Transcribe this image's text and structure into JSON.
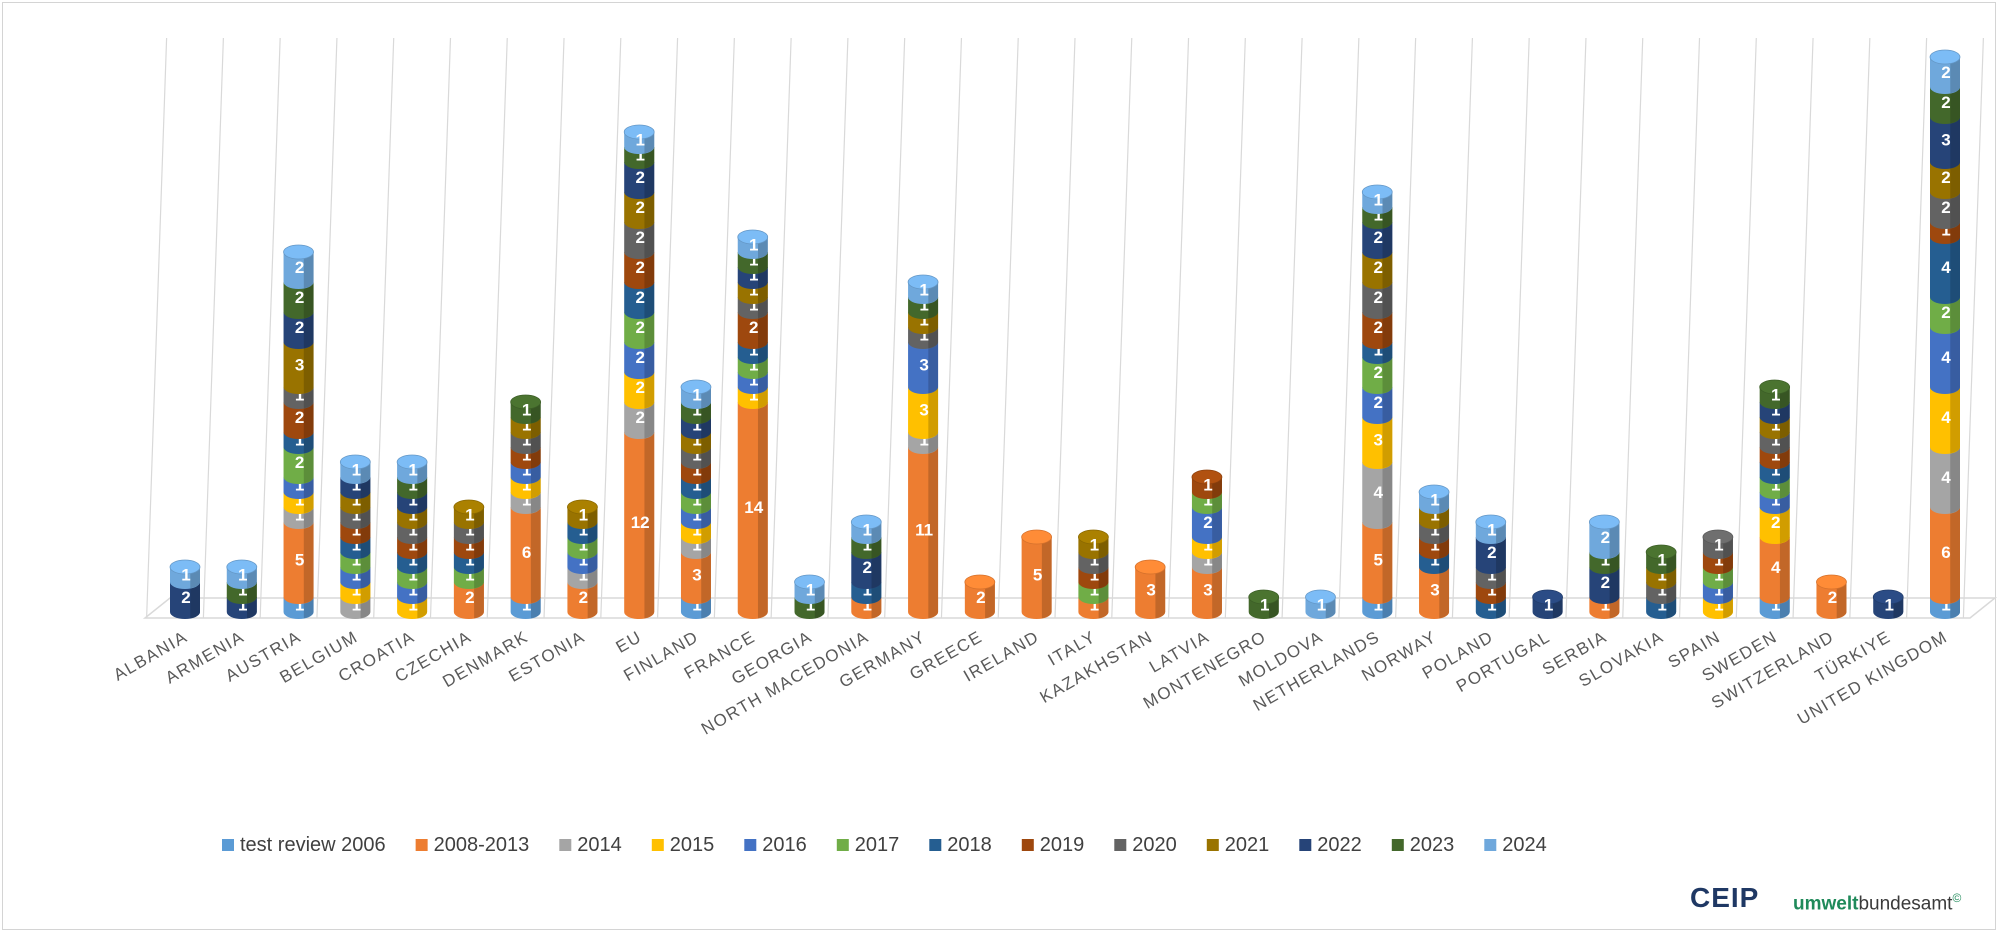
{
  "chart_data": {
    "type": "bar",
    "stacked": true,
    "style": "3d-cylinder",
    "title": "",
    "xlabel": "",
    "ylabel": "",
    "grid": true,
    "legend_position": "bottom",
    "categories": [
      "ALBANIA",
      "ARMENIA",
      "AUSTRIA",
      "BELGIUM",
      "CROATIA",
      "CZECHIA",
      "DENMARK",
      "ESTONIA",
      "EU",
      "FINLAND",
      "FRANCE",
      "GEORGIA",
      "NORTH MACEDONIA",
      "GERMANY",
      "GREECE",
      "IRELAND",
      "ITALY",
      "KAZAKHSTAN",
      "LATVIA",
      "MONTENEGRO",
      "MOLDOVA",
      "NETHERLANDS",
      "NORWAY",
      "POLAND",
      "PORTUGAL",
      "SERBIA",
      "SLOVAKIA",
      "SPAIN",
      "SWEDEN",
      "SWITZERLAND",
      "TÜRKIYE",
      "UNITED KINGDOM"
    ],
    "series": [
      {
        "name": "test review 2006",
        "color": "#5b9bd5",
        "values": [
          0,
          0,
          1,
          0,
          0,
          0,
          1,
          0,
          0,
          1,
          0,
          0,
          0,
          0,
          0,
          0,
          0,
          0,
          0,
          0,
          0,
          1,
          0,
          0,
          0,
          0,
          0,
          0,
          1,
          0,
          0,
          1
        ]
      },
      {
        "name": "2008-2013",
        "color": "#ed7d31",
        "values": [
          0,
          0,
          5,
          0,
          0,
          2,
          6,
          2,
          12,
          3,
          14,
          0,
          1,
          11,
          2,
          5,
          1,
          3,
          3,
          0,
          0,
          5,
          3,
          0,
          0,
          1,
          0,
          0,
          4,
          2,
          0,
          6
        ]
      },
      {
        "name": "2014",
        "color": "#a5a5a5",
        "values": [
          0,
          0,
          1,
          1,
          0,
          0,
          1,
          1,
          2,
          1,
          0,
          0,
          0,
          1,
          0,
          0,
          0,
          0,
          1,
          0,
          0,
          4,
          0,
          0,
          0,
          0,
          0,
          0,
          0,
          0,
          0,
          4
        ]
      },
      {
        "name": "2015",
        "color": "#ffc000",
        "values": [
          0,
          0,
          1,
          1,
          1,
          0,
          1,
          0,
          2,
          1,
          1,
          0,
          0,
          3,
          0,
          0,
          0,
          0,
          1,
          0,
          0,
          3,
          0,
          0,
          0,
          0,
          0,
          1,
          2,
          0,
          0,
          4
        ]
      },
      {
        "name": "2016",
        "color": "#4472c4",
        "values": [
          0,
          0,
          1,
          1,
          1,
          0,
          1,
          1,
          2,
          1,
          1,
          0,
          0,
          3,
          0,
          0,
          0,
          0,
          2,
          0,
          0,
          2,
          0,
          0,
          0,
          0,
          0,
          1,
          1,
          0,
          0,
          4
        ]
      },
      {
        "name": "2017",
        "color": "#70ad47",
        "values": [
          0,
          0,
          2,
          1,
          1,
          1,
          0,
          1,
          2,
          1,
          1,
          0,
          0,
          0,
          0,
          0,
          1,
          0,
          1,
          0,
          0,
          2,
          0,
          0,
          0,
          0,
          0,
          1,
          1,
          0,
          0,
          2
        ]
      },
      {
        "name": "2018",
        "color": "#255e91",
        "values": [
          0,
          0,
          1,
          1,
          1,
          1,
          0,
          1,
          2,
          1,
          1,
          0,
          1,
          0,
          0,
          0,
          0,
          0,
          0,
          0,
          0,
          1,
          1,
          1,
          0,
          0,
          1,
          0,
          1,
          0,
          0,
          4
        ]
      },
      {
        "name": "2019",
        "color": "#9e480e",
        "values": [
          0,
          0,
          2,
          1,
          1,
          1,
          1,
          0,
          2,
          1,
          2,
          0,
          0,
          0,
          0,
          0,
          1,
          0,
          1,
          0,
          0,
          2,
          1,
          1,
          0,
          0,
          0,
          1,
          1,
          0,
          0,
          1
        ]
      },
      {
        "name": "2020",
        "color": "#636363",
        "values": [
          0,
          0,
          1,
          1,
          1,
          1,
          1,
          0,
          2,
          1,
          1,
          0,
          0,
          1,
          0,
          0,
          1,
          0,
          0,
          0,
          0,
          2,
          1,
          1,
          0,
          0,
          1,
          1,
          1,
          0,
          0,
          2
        ]
      },
      {
        "name": "2021",
        "color": "#997300",
        "values": [
          0,
          0,
          3,
          1,
          1,
          1,
          1,
          1,
          2,
          1,
          1,
          0,
          0,
          1,
          0,
          0,
          1,
          0,
          0,
          0,
          0,
          2,
          1,
          0,
          0,
          0,
          1,
          0,
          1,
          0,
          0,
          2
        ]
      },
      {
        "name": "2022",
        "color": "#264478",
        "values": [
          2,
          1,
          2,
          1,
          1,
          0,
          0,
          0,
          2,
          1,
          1,
          0,
          2,
          0,
          0,
          0,
          0,
          0,
          0,
          0,
          0,
          2,
          0,
          2,
          1,
          2,
          0,
          0,
          1,
          0,
          1,
          3
        ]
      },
      {
        "name": "2023",
        "color": "#43682b",
        "values": [
          0,
          1,
          2,
          0,
          1,
          0,
          1,
          0,
          1,
          1,
          1,
          1,
          1,
          1,
          0,
          0,
          0,
          0,
          0,
          1,
          0,
          1,
          0,
          0,
          0,
          1,
          1,
          0,
          1,
          0,
          0,
          2
        ]
      },
      {
        "name": "2024",
        "color": "#6fa8dc",
        "values": [
          1,
          1,
          2,
          1,
          1,
          0,
          0,
          0,
          1,
          1,
          1,
          1,
          1,
          1,
          0,
          0,
          0,
          0,
          0,
          0,
          1,
          1,
          1,
          1,
          0,
          2,
          0,
          0,
          0,
          0,
          0,
          2
        ]
      }
    ]
  },
  "logos": {
    "ceip": "CEIP",
    "uba_part1": "umwelt",
    "uba_part2": "bundesamt",
    "uba_mark": "©"
  }
}
